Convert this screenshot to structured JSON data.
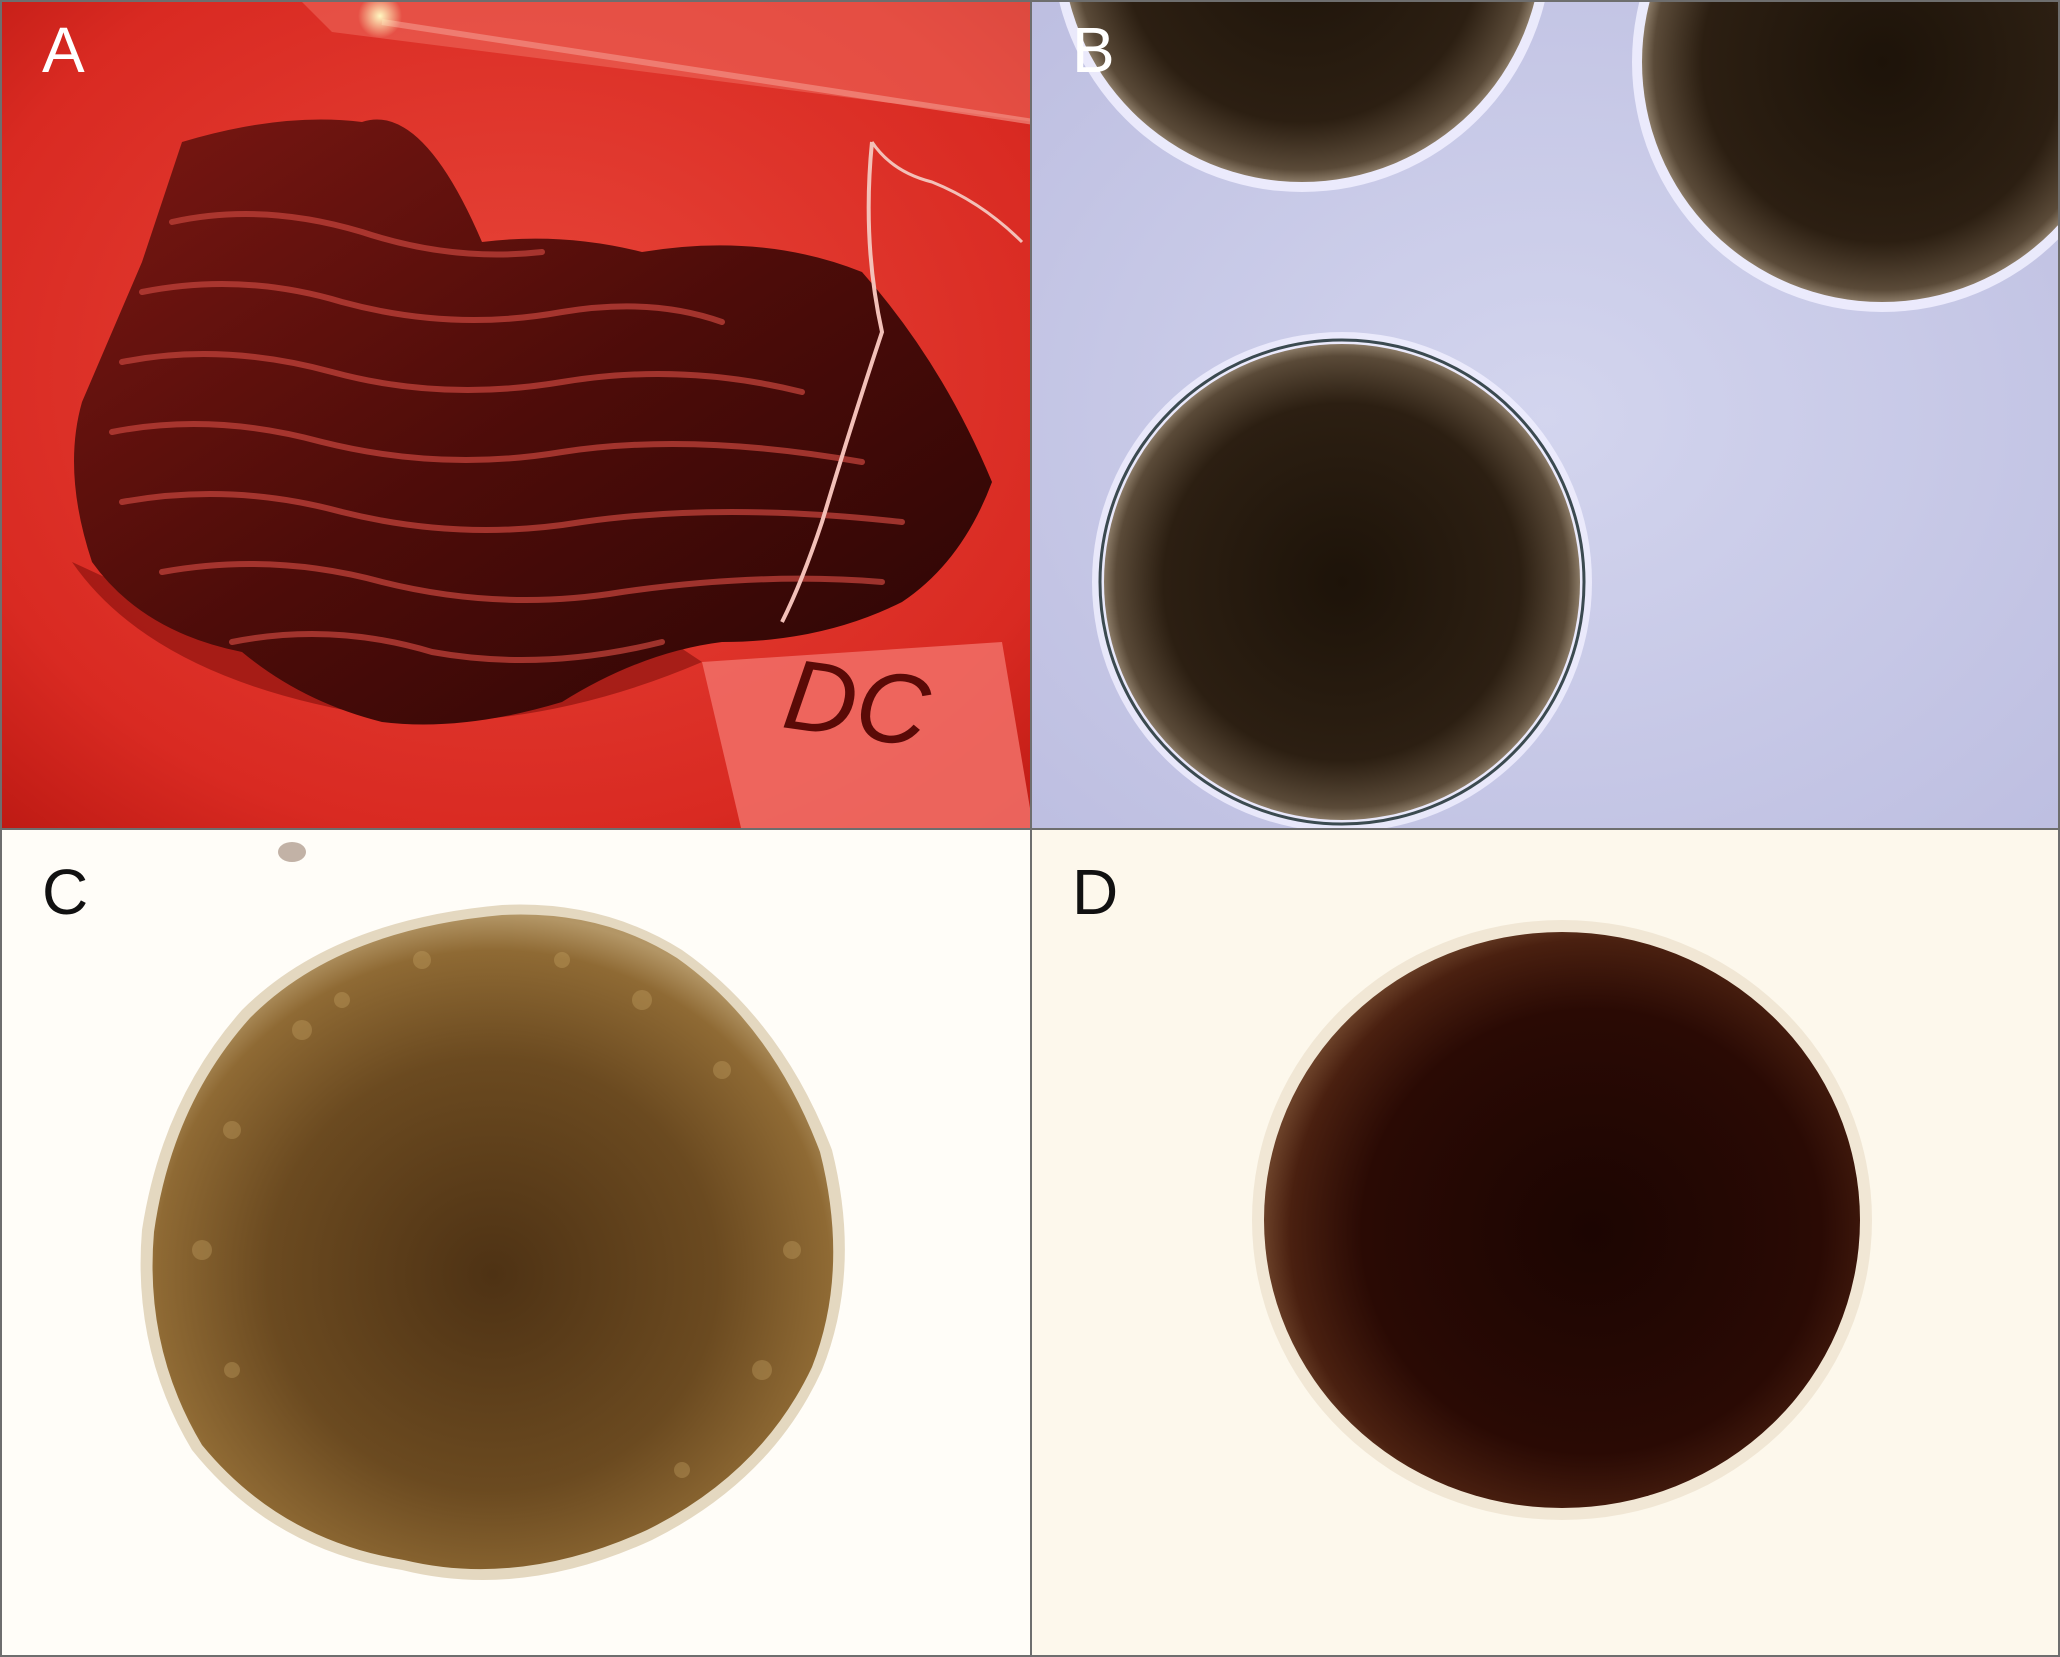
{
  "panels": [
    {
      "label": "A",
      "content": "photo",
      "background_color": "#e0332b"
    },
    {
      "label": "B",
      "content": "photo",
      "background_color": "#c9cbe8"
    },
    {
      "label": "C",
      "content": "photo",
      "background_color": "#fffdf8"
    },
    {
      "label": "D",
      "content": "photo",
      "background_color": "#fdf8ec"
    }
  ],
  "sample_tag_text": "DC"
}
